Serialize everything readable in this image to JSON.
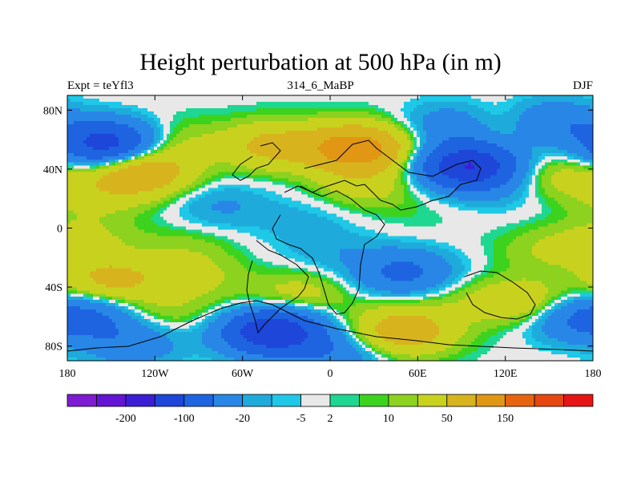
{
  "title": "Height perturbation at 500 hPa (in m)",
  "left_string": "Expt = teYfl3",
  "center_string": "314_6_MaBP",
  "right_string": "DJF",
  "chart_data": {
    "type": "heatmap",
    "title": "Height perturbation at 500 hPa (in m)",
    "variable": "500 hPa geopotential height perturbation",
    "units": "m",
    "x_range": [
      -180,
      180
    ],
    "y_range": [
      -90,
      90
    ],
    "x_ticks": [
      {
        "value": -180,
        "label": "180"
      },
      {
        "value": -120,
        "label": "120W"
      },
      {
        "value": -60,
        "label": "60W"
      },
      {
        "value": 0,
        "label": "0"
      },
      {
        "value": 60,
        "label": "60E"
      },
      {
        "value": 120,
        "label": "120E"
      },
      {
        "value": 180,
        "label": "180"
      }
    ],
    "y_ticks": [
      {
        "value": 80,
        "label": "80N"
      },
      {
        "value": 40,
        "label": "40N"
      },
      {
        "value": 0,
        "label": "0"
      },
      {
        "value": -40,
        "label": "40S"
      },
      {
        "value": -80,
        "label": "80S"
      }
    ],
    "colorbar": {
      "colors": [
        "#7f1bd3",
        "#6414d3",
        "#3c1ed4",
        "#1e46d9",
        "#1e64e1",
        "#2887e6",
        "#1eabdc",
        "#1ec8e6",
        "#e8e8e8",
        "#1ed791",
        "#3cd21e",
        "#8cd21e",
        "#c8d21e",
        "#d7b41e",
        "#e19614",
        "#e6640f",
        "#e6460f",
        "#e61414"
      ],
      "label_boundaries": [
        {
          "index": 2,
          "label": "-200"
        },
        {
          "index": 4,
          "label": "-100"
        },
        {
          "index": 6,
          "label": "-20"
        },
        {
          "index": 8,
          "label": "-5"
        },
        {
          "index": 9,
          "label": "2"
        },
        {
          "index": 11,
          "label": "10"
        },
        {
          "index": 13,
          "label": "50"
        },
        {
          "index": 15,
          "label": "150"
        }
      ]
    },
    "features": [
      {
        "lon": -152,
        "lat": 57,
        "value": -130
      },
      {
        "lon": -110,
        "lat": 58,
        "value": 25
      },
      {
        "lon": -40,
        "lat": 56,
        "value": 60
      },
      {
        "lon": 18,
        "lat": 54,
        "value": 135
      },
      {
        "lon": 25,
        "lat": 30,
        "value": 30
      },
      {
        "lon": -130,
        "lat": 38,
        "value": 90
      },
      {
        "lon": -160,
        "lat": 22,
        "value": 25
      },
      {
        "lon": -75,
        "lat": 15,
        "value": -22
      },
      {
        "lon": -20,
        "lat": 5,
        "value": -12
      },
      {
        "lon": 95,
        "lat": 42,
        "value": -150
      },
      {
        "lon": 120,
        "lat": 25,
        "value": -12
      },
      {
        "lon": 155,
        "lat": 35,
        "value": 30
      },
      {
        "lon": 118,
        "lat": 71,
        "value": 25
      },
      {
        "lon": 150,
        "lat": 72,
        "value": -50
      },
      {
        "lon": 85,
        "lat": 70,
        "value": -40
      },
      {
        "lon": 60,
        "lat": 10,
        "value": 4
      },
      {
        "lon": 150,
        "lat": -15,
        "value": 20
      },
      {
        "lon": -170,
        "lat": -8,
        "value": 25
      },
      {
        "lon": -100,
        "lat": -12,
        "value": 12
      },
      {
        "lon": -150,
        "lat": -35,
        "value": 60
      },
      {
        "lon": -95,
        "lat": -32,
        "value": 25
      },
      {
        "lon": -165,
        "lat": -60,
        "value": -50
      },
      {
        "lon": -135,
        "lat": -78,
        "value": -40
      },
      {
        "lon": -40,
        "lat": -70,
        "value": -150
      },
      {
        "lon": -20,
        "lat": -45,
        "value": 30
      },
      {
        "lon": 0,
        "lat": -15,
        "value": -15
      },
      {
        "lon": 50,
        "lat": -30,
        "value": -60
      },
      {
        "lon": 50,
        "lat": -70,
        "value": 80
      },
      {
        "lon": 85,
        "lat": -50,
        "value": 10
      },
      {
        "lon": 130,
        "lat": -50,
        "value": 45
      },
      {
        "lon": 165,
        "lat": -62,
        "value": -40
      },
      {
        "lon": -60,
        "lat": -55,
        "value": 8
      },
      {
        "lon": -115,
        "lat": -58,
        "value": 20
      },
      {
        "lon": 5,
        "lat": -85,
        "value": -40
      }
    ]
  }
}
